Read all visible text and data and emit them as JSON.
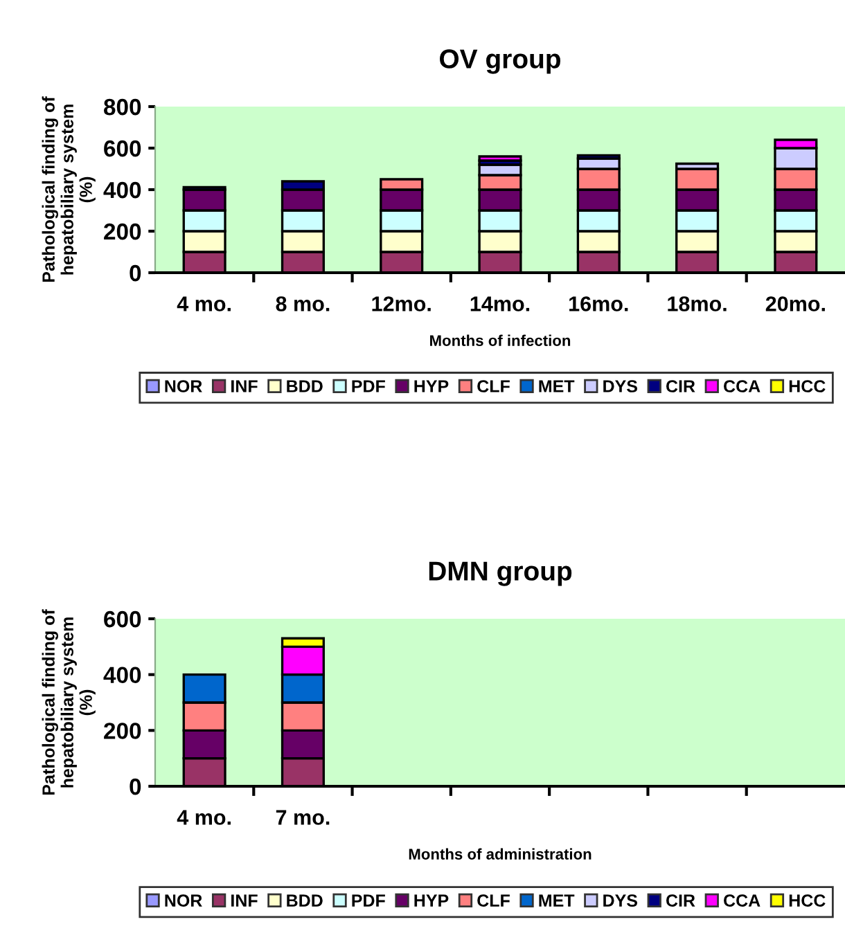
{
  "chart_data": [
    {
      "type": "bar",
      "title": "OV group",
      "xlabel": "Months of infection",
      "ylabel": "Pathological finding of\nhepatobiliary system\n(%)",
      "stacked": true,
      "legend": "bottom",
      "grid": false,
      "categories": [
        "4 mo.",
        "8 mo.",
        "12mo.",
        "14mo.",
        "16mo.",
        "18mo.",
        "20mo."
      ],
      "ylim": [
        0,
        800
      ],
      "yticks": [
        0,
        200,
        400,
        600,
        800
      ],
      "series": [
        {
          "name": "NOR",
          "color": "#9999ff",
          "values": [
            null,
            null,
            null,
            null,
            null,
            null,
            null
          ]
        },
        {
          "name": "INF",
          "color": "#993366",
          "values": [
            100,
            100,
            100,
            100,
            100,
            100,
            100
          ]
        },
        {
          "name": "BDD",
          "color": "#ffffcc",
          "values": [
            100,
            100,
            100,
            100,
            100,
            100,
            100
          ]
        },
        {
          "name": "PDF",
          "color": "#ccffff",
          "values": [
            100,
            100,
            100,
            100,
            100,
            100,
            100
          ]
        },
        {
          "name": "HYP",
          "color": "#660066",
          "values": [
            100,
            100,
            100,
            100,
            100,
            100,
            100
          ]
        },
        {
          "name": "CLF",
          "color": "#ff8080",
          "values": [
            null,
            null,
            50,
            70,
            100,
            100,
            100
          ]
        },
        {
          "name": "MET",
          "color": "#0066cc",
          "values": [
            null,
            null,
            null,
            null,
            null,
            null,
            null
          ]
        },
        {
          "name": "DYS",
          "color": "#ccccff",
          "values": [
            null,
            null,
            null,
            50,
            50,
            25,
            100
          ]
        },
        {
          "name": "CIR",
          "color": "#000080",
          "values": [
            12,
            40,
            null,
            20,
            15,
            null,
            null
          ]
        },
        {
          "name": "CCA",
          "color": "#ff00ff",
          "values": [
            null,
            null,
            null,
            20,
            null,
            null,
            40
          ]
        },
        {
          "name": "HCC",
          "color": "#ffff00",
          "values": [
            null,
            null,
            null,
            null,
            null,
            null,
            null
          ]
        }
      ]
    },
    {
      "type": "bar",
      "title": "DMN group",
      "xlabel": "Months of administration",
      "ylabel": "Pathological finding of\nhepatobiliary system\n(%)",
      "stacked": true,
      "legend": "bottom",
      "grid": false,
      "categories": [
        "4 mo.",
        "7 mo.",
        null,
        null,
        null,
        null,
        null
      ],
      "ylim": [
        0,
        600
      ],
      "yticks": [
        0,
        200,
        400,
        600
      ],
      "series": [
        {
          "name": "NOR",
          "color": "#9999ff",
          "values": [
            null,
            null,
            null,
            null,
            null,
            null,
            null
          ]
        },
        {
          "name": "INF",
          "color": "#993366",
          "values": [
            100,
            100,
            null,
            null,
            null,
            null,
            null
          ]
        },
        {
          "name": "BDD",
          "color": "#ffffcc",
          "values": [
            null,
            null,
            null,
            null,
            null,
            null,
            null
          ]
        },
        {
          "name": "PDF",
          "color": "#ccffff",
          "values": [
            null,
            null,
            null,
            null,
            null,
            null,
            null
          ]
        },
        {
          "name": "HYP",
          "color": "#660066",
          "values": [
            100,
            100,
            null,
            null,
            null,
            null,
            null
          ]
        },
        {
          "name": "CLF",
          "color": "#ff8080",
          "values": [
            100,
            100,
            null,
            null,
            null,
            null,
            null
          ]
        },
        {
          "name": "MET",
          "color": "#0066cc",
          "values": [
            100,
            100,
            null,
            null,
            null,
            null,
            null
          ]
        },
        {
          "name": "DYS",
          "color": "#ccccff",
          "values": [
            null,
            null,
            null,
            null,
            null,
            null,
            null
          ]
        },
        {
          "name": "CIR",
          "color": "#000080",
          "values": [
            null,
            null,
            null,
            null,
            null,
            null,
            null
          ]
        },
        {
          "name": "CCA",
          "color": "#ff00ff",
          "values": [
            null,
            100,
            null,
            null,
            null,
            null,
            null
          ]
        },
        {
          "name": "HCC",
          "color": "#ffff00",
          "values": [
            null,
            30,
            null,
            null,
            null,
            null,
            null
          ]
        }
      ]
    }
  ]
}
